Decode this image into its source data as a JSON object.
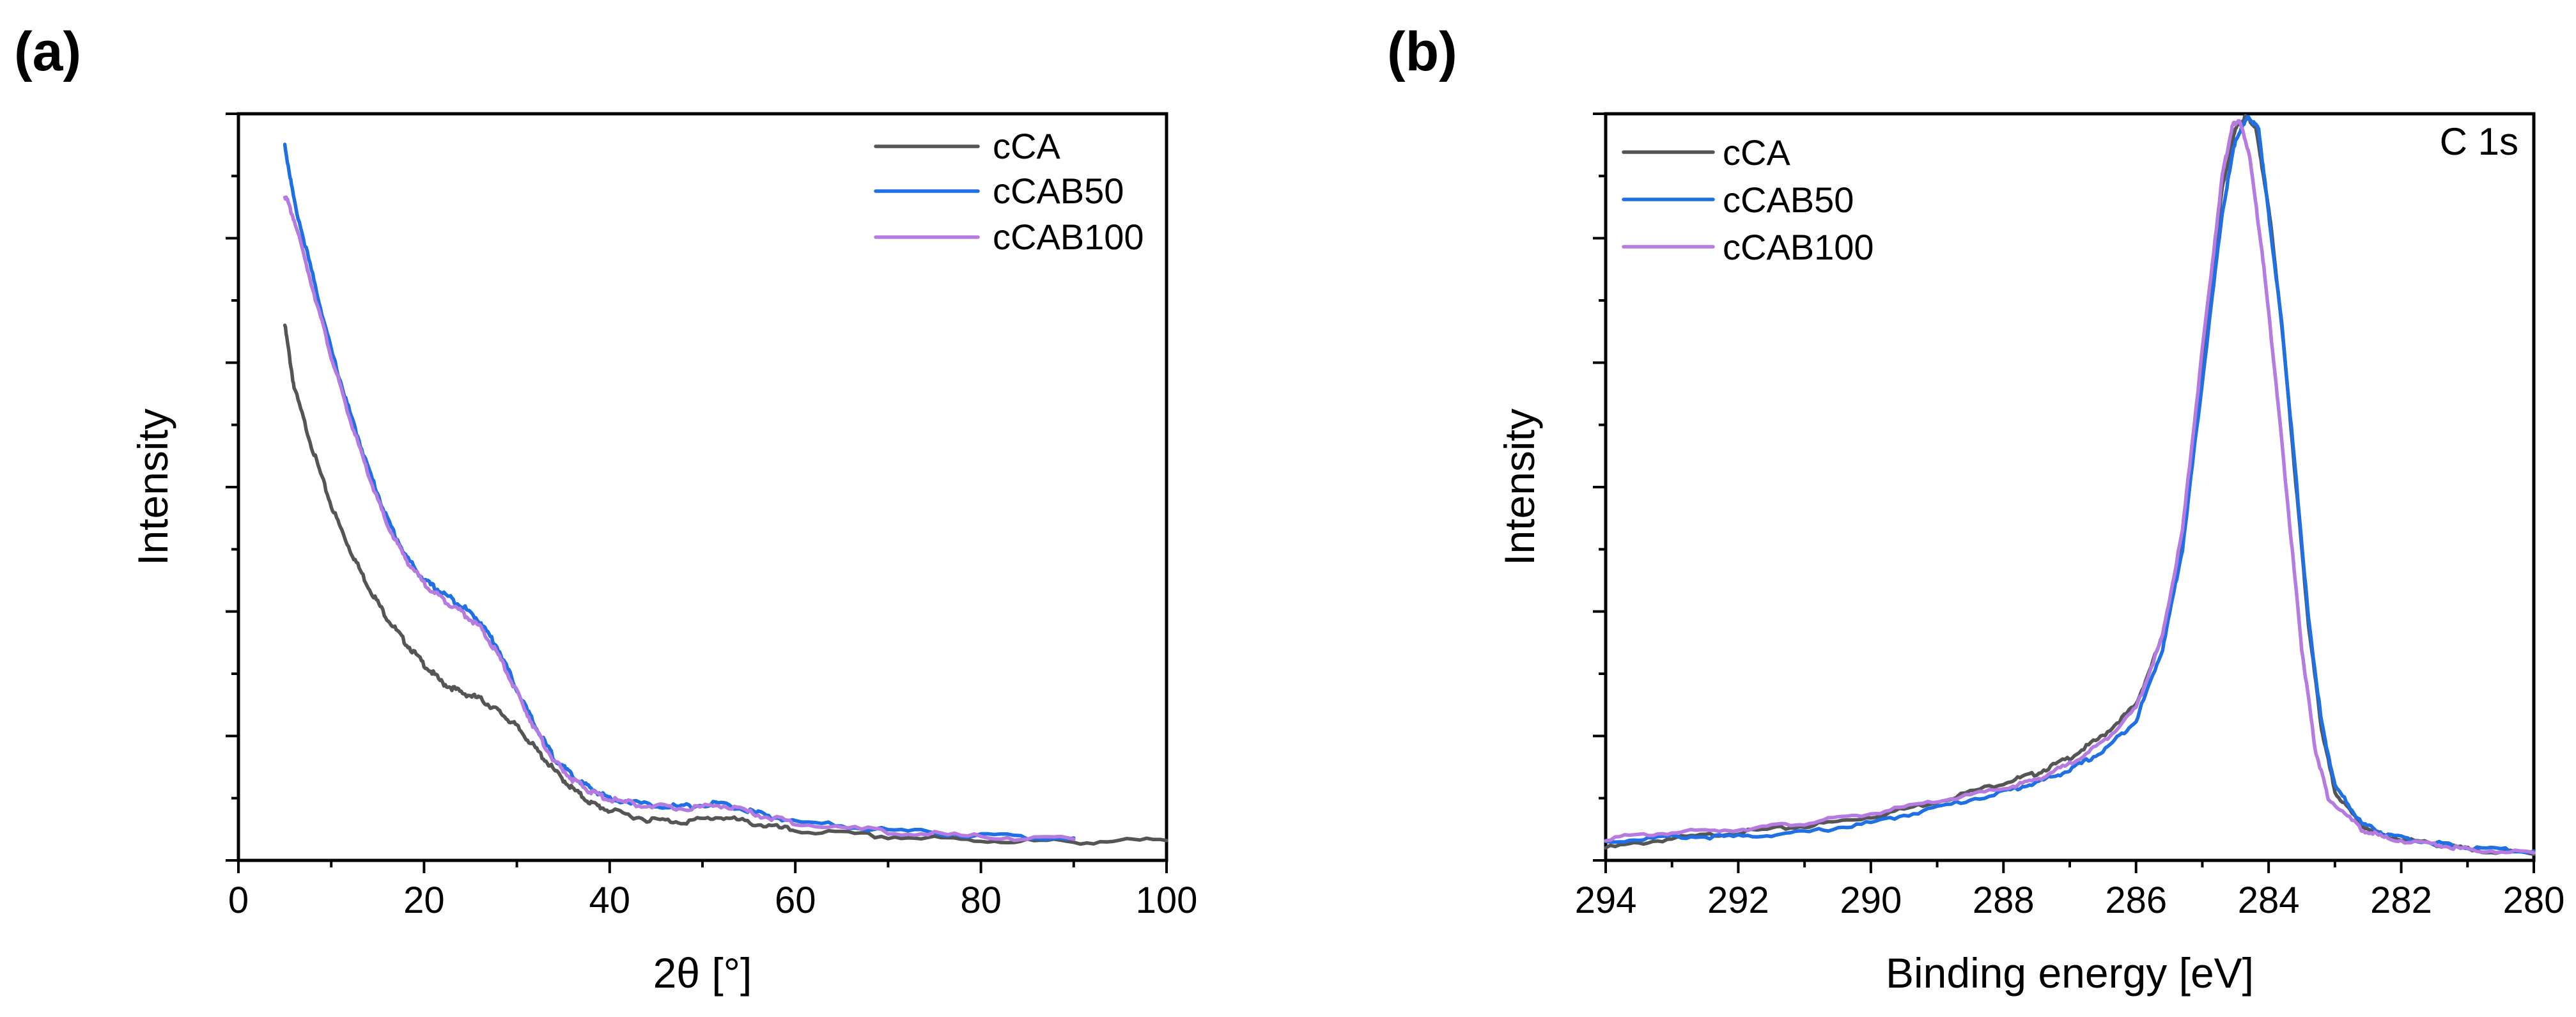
{
  "chart_data": [
    {
      "type": "line",
      "panel_label": "(a)",
      "title": "",
      "xlabel": "2θ [°]",
      "ylabel": "Intensity",
      "xlim": [
        0,
        100
      ],
      "ylim": [
        0,
        120
      ],
      "xticks": [
        0,
        20,
        40,
        60,
        80,
        100
      ],
      "x_tick_labels": [
        "0",
        "20",
        "40",
        "60",
        "80",
        "100"
      ],
      "y_tick_labels_shown": false,
      "legend_position": "top-right",
      "series": [
        {
          "name": "cCA",
          "color": "#555555",
          "x": [
            5,
            6,
            8,
            10,
            12,
            14,
            16,
            18,
            20,
            22,
            24,
            26,
            28,
            30,
            32,
            34,
            36,
            38,
            40,
            44,
            48,
            52,
            56,
            60,
            70,
            80,
            90,
            100
          ],
          "y": [
            86,
            76,
            66,
            57,
            50,
            44,
            39,
            35,
            31.5,
            28.5,
            27,
            26,
            24,
            21.5,
            18,
            14.5,
            11.5,
            9.2,
            8,
            6.6,
            6.2,
            7.0,
            5.8,
            4.8,
            3.8,
            3.2,
            3.0,
            3.2
          ]
        },
        {
          "name": "cCAB50",
          "color": "#1f6fe5",
          "x": [
            5,
            6,
            8,
            10,
            12,
            14,
            16,
            18,
            20,
            22,
            24,
            26,
            28,
            30,
            32,
            34,
            36,
            38,
            40,
            44,
            48,
            52,
            56,
            60,
            70,
            80,
            90
          ],
          "y": [
            115,
            106,
            94,
            82,
            72,
            63,
            55,
            49,
            45,
            43,
            41,
            38.5,
            34,
            27.5,
            21.5,
            16.5,
            13.5,
            11.5,
            10,
            9,
            8.6,
            9.2,
            7.5,
            6.2,
            4.9,
            4.0,
            3.6
          ]
        },
        {
          "name": "cCAB100",
          "color": "#b57be0",
          "x": [
            5,
            6,
            8,
            10,
            12,
            14,
            16,
            18,
            20,
            22,
            24,
            26,
            28,
            30,
            32,
            34,
            36,
            38,
            40,
            44,
            48,
            52,
            56,
            60,
            70,
            80,
            90
          ],
          "y": [
            107,
            103,
            92,
            81,
            71,
            62,
            54,
            48.5,
            44.5,
            42,
            40,
            37.5,
            33,
            27,
            21,
            16,
            13,
            11,
            9.8,
            8.8,
            8.3,
            8.9,
            7.3,
            6.0,
            4.6,
            3.8,
            3.4
          ]
        }
      ]
    },
    {
      "type": "line",
      "panel_label": "(b)",
      "title": "",
      "annotation": "C 1s",
      "xlabel": "Binding energy [eV]",
      "ylabel": "Intensity",
      "xlim": [
        294,
        280
      ],
      "ylim": [
        0,
        120
      ],
      "xticks": [
        294,
        292,
        290,
        288,
        286,
        284,
        282,
        280
      ],
      "x_tick_labels": [
        "294",
        "292",
        "290",
        "288",
        "286",
        "284",
        "282",
        "280"
      ],
      "y_tick_labels_shown": false,
      "legend_position": "top-left",
      "series": [
        {
          "name": "cCA",
          "color": "#555555",
          "x": [
            294,
            293,
            292,
            291,
            290,
            289,
            288,
            287.5,
            287,
            286.5,
            286,
            285.6,
            285.3,
            285.0,
            284.7,
            284.5,
            284.35,
            284.2,
            284.0,
            283.8,
            283.6,
            283.4,
            283.2,
            283.0,
            282.6,
            282.2,
            281.5,
            281,
            280
          ],
          "y": [
            2.0,
            3.5,
            4.5,
            5.5,
            7.0,
            9.5,
            12.5,
            14.0,
            16.5,
            20.0,
            25.0,
            36.0,
            52.0,
            80.0,
            108.0,
            117.5,
            119.5,
            118.0,
            105.0,
            86.0,
            62.0,
            38.0,
            21.0,
            11.0,
            5.5,
            3.8,
            2.6,
            1.8,
            1.0
          ]
        },
        {
          "name": "cCAB50",
          "color": "#1f6fe5",
          "x": [
            294,
            293,
            292,
            291,
            290,
            289,
            288,
            287.5,
            287,
            286.5,
            286,
            285.6,
            285.3,
            285.0,
            284.7,
            284.5,
            284.3,
            284.15,
            284.0,
            283.8,
            283.6,
            283.4,
            283.2,
            283.0,
            282.6,
            282.2,
            281.5,
            281,
            280
          ],
          "y": [
            3.0,
            3.8,
            3.8,
            4.5,
            6.0,
            8.5,
            11.0,
            12.5,
            14.5,
            17.5,
            22.5,
            34.0,
            50.0,
            77.0,
            104.0,
            116.0,
            119.5,
            117.5,
            104.0,
            86.0,
            63.0,
            39.0,
            22.0,
            12.0,
            6.0,
            4.0,
            2.8,
            2.0,
            1.5
          ]
        },
        {
          "name": "cCAB100",
          "color": "#b57be0",
          "x": [
            294,
            293,
            292,
            291,
            290,
            289,
            288,
            287.5,
            287,
            286.5,
            286,
            285.6,
            285.3,
            285.0,
            284.7,
            284.55,
            284.45,
            284.3,
            284.1,
            283.9,
            283.7,
            283.5,
            283.3,
            283.1,
            282.6,
            282.2,
            281.5,
            281,
            280
          ],
          "y": [
            3.5,
            4.5,
            5.0,
            6.0,
            7.5,
            9.5,
            11.5,
            13.0,
            15.5,
            19.0,
            24.5,
            36.0,
            53.0,
            82.0,
            110.0,
            118.0,
            119.0,
            114.0,
            98.0,
            78.0,
            56.0,
            34.0,
            18.0,
            10.0,
            5.0,
            3.5,
            2.5,
            1.8,
            1.2
          ]
        }
      ]
    }
  ]
}
